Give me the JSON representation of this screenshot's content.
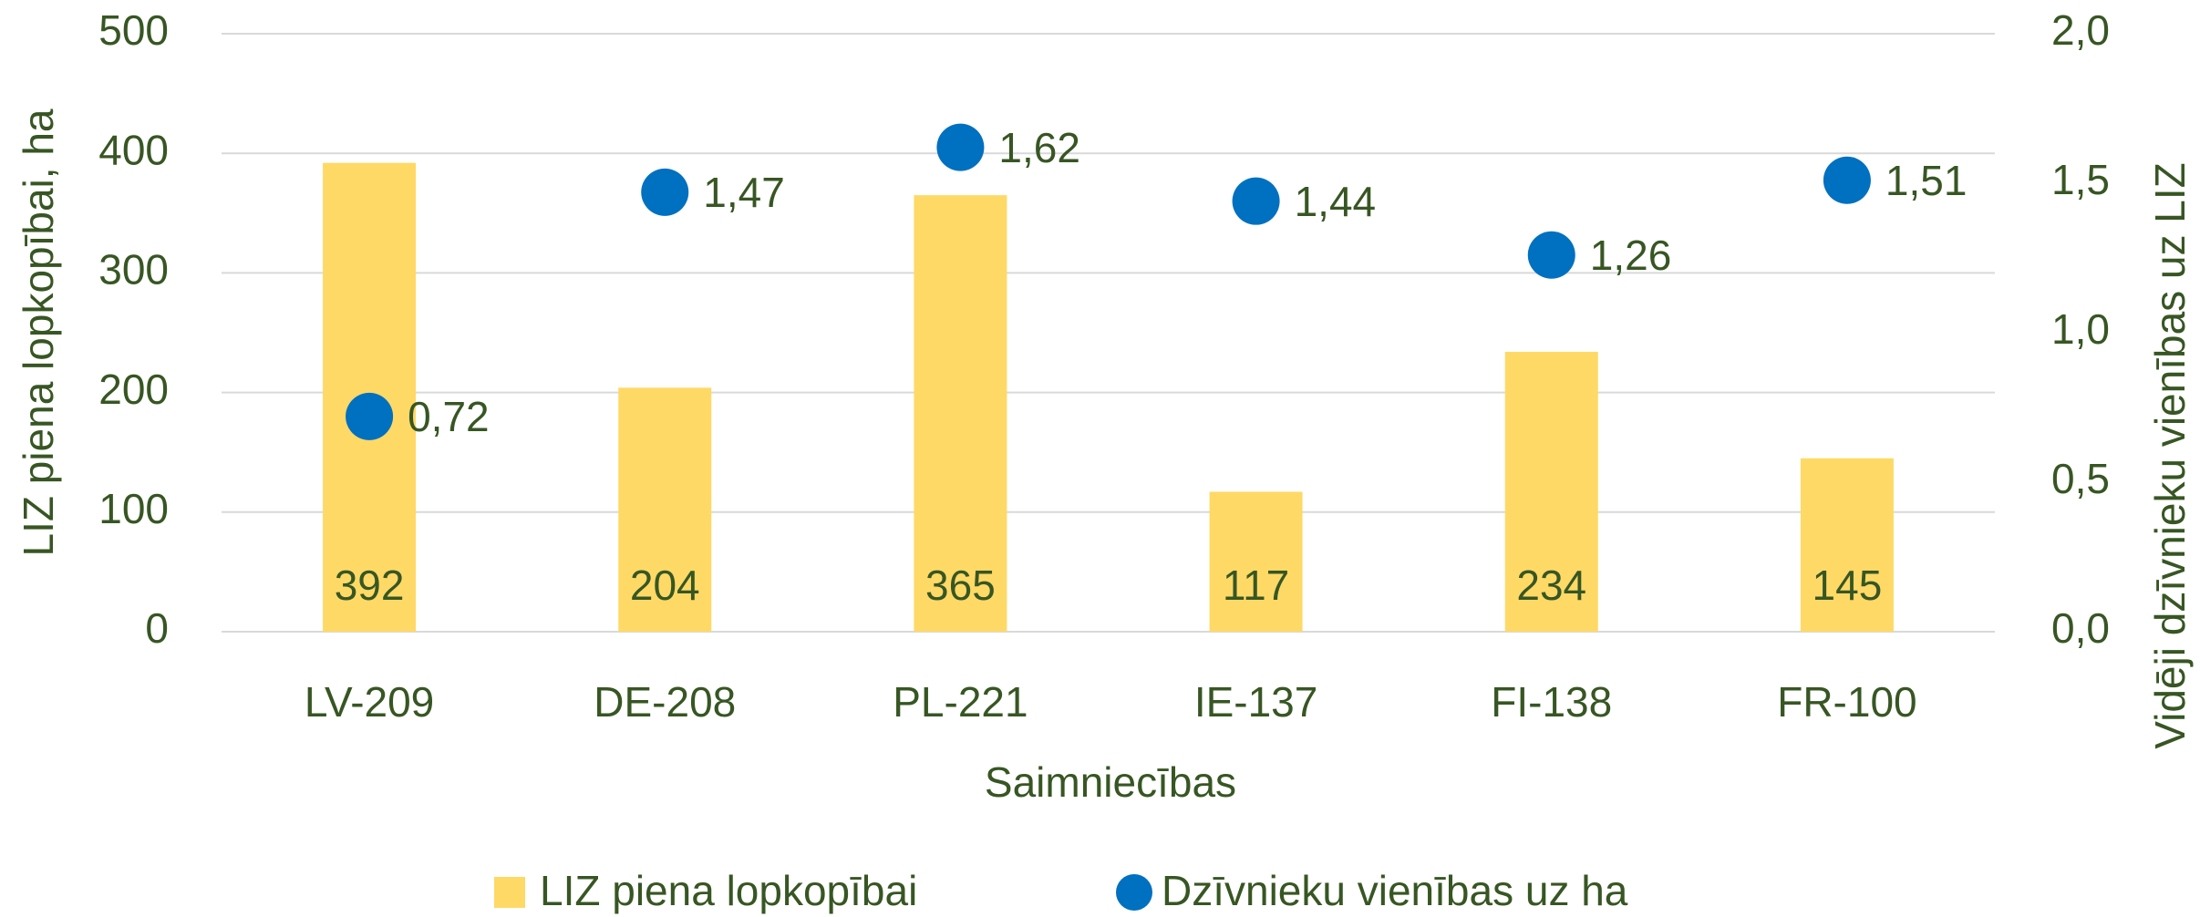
{
  "chart_data": {
    "type": "bar",
    "x_label": "Saimniecības",
    "y_label": "LIZ piena lopkopībai, ha",
    "y2_label": "Vidēji dzīvnieku vienības uz LIZ",
    "categories": [
      "LV-209",
      "DE-208",
      "PL-221",
      "IE-137",
      "FI-138",
      "FR-100"
    ],
    "series": [
      {
        "name": "LIZ piena lopkopībai",
        "type": "bar",
        "color": "#ffd966",
        "values": [
          392,
          204,
          365,
          117,
          234,
          145
        ]
      },
      {
        "name": "Dzīvnieku vienības uz ha",
        "type": "scatter",
        "axis": "y2",
        "color": "#0070c0",
        "values": [
          0.72,
          1.47,
          1.62,
          1.44,
          1.26,
          1.51
        ],
        "value_labels": [
          "0,72",
          "1,47",
          "1,62",
          "1,44",
          "1,26",
          "1,51"
        ]
      }
    ],
    "ylim": [
      0,
      500
    ],
    "yticks": [
      0,
      100,
      200,
      300,
      400,
      500
    ],
    "y2lim": [
      0,
      2
    ],
    "y2ticks": [
      {
        "value": 0,
        "label": "0,0"
      },
      {
        "value": 0.5,
        "label": "0,5"
      },
      {
        "value": 1,
        "label": "1,0"
      },
      {
        "value": 1.5,
        "label": "1,5"
      },
      {
        "value": 2,
        "label": "2,0"
      }
    ],
    "grid": true,
    "legend": "bottom"
  }
}
